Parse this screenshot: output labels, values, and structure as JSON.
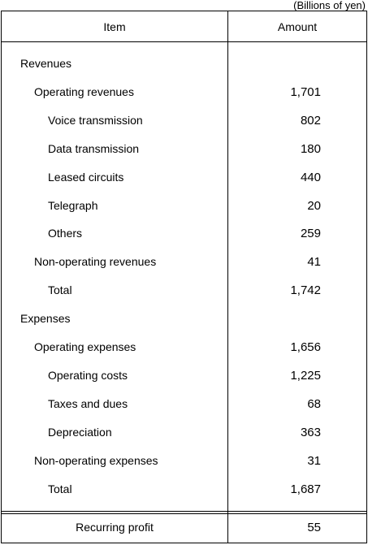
{
  "unit_note": "(Billions of yen)",
  "header": {
    "item": "Item",
    "amount": "Amount"
  },
  "rows": [
    {
      "label": "Revenues",
      "amount": "",
      "level": 0
    },
    {
      "label": "Operating revenues",
      "amount": "1,701",
      "level": 1
    },
    {
      "label": "Voice transmission",
      "amount": "802",
      "level": 2
    },
    {
      "label": "Data transmission",
      "amount": "180",
      "level": 2
    },
    {
      "label": "Leased circuits",
      "amount": "440",
      "level": 2
    },
    {
      "label": "Telegraph",
      "amount": "20",
      "level": 2
    },
    {
      "label": "Others",
      "amount": "259",
      "level": 2
    },
    {
      "label": "Non-operating revenues",
      "amount": "41",
      "level": 1
    },
    {
      "label": "Total",
      "amount": "1,742",
      "level": 2
    },
    {
      "label": "Expenses",
      "amount": "",
      "level": 0
    },
    {
      "label": "Operating expenses",
      "amount": "1,656",
      "level": 1
    },
    {
      "label": "Operating costs",
      "amount": "1,225",
      "level": 2
    },
    {
      "label": "Taxes and dues",
      "amount": "68",
      "level": 2
    },
    {
      "label": "Depreciation",
      "amount": "363",
      "level": 2
    },
    {
      "label": "Non-operating expenses",
      "amount": "31",
      "level": 1
    },
    {
      "label": "Total",
      "amount": "1,687",
      "level": 2
    }
  ],
  "footer": {
    "label": "Recurring profit",
    "amount": "55"
  }
}
